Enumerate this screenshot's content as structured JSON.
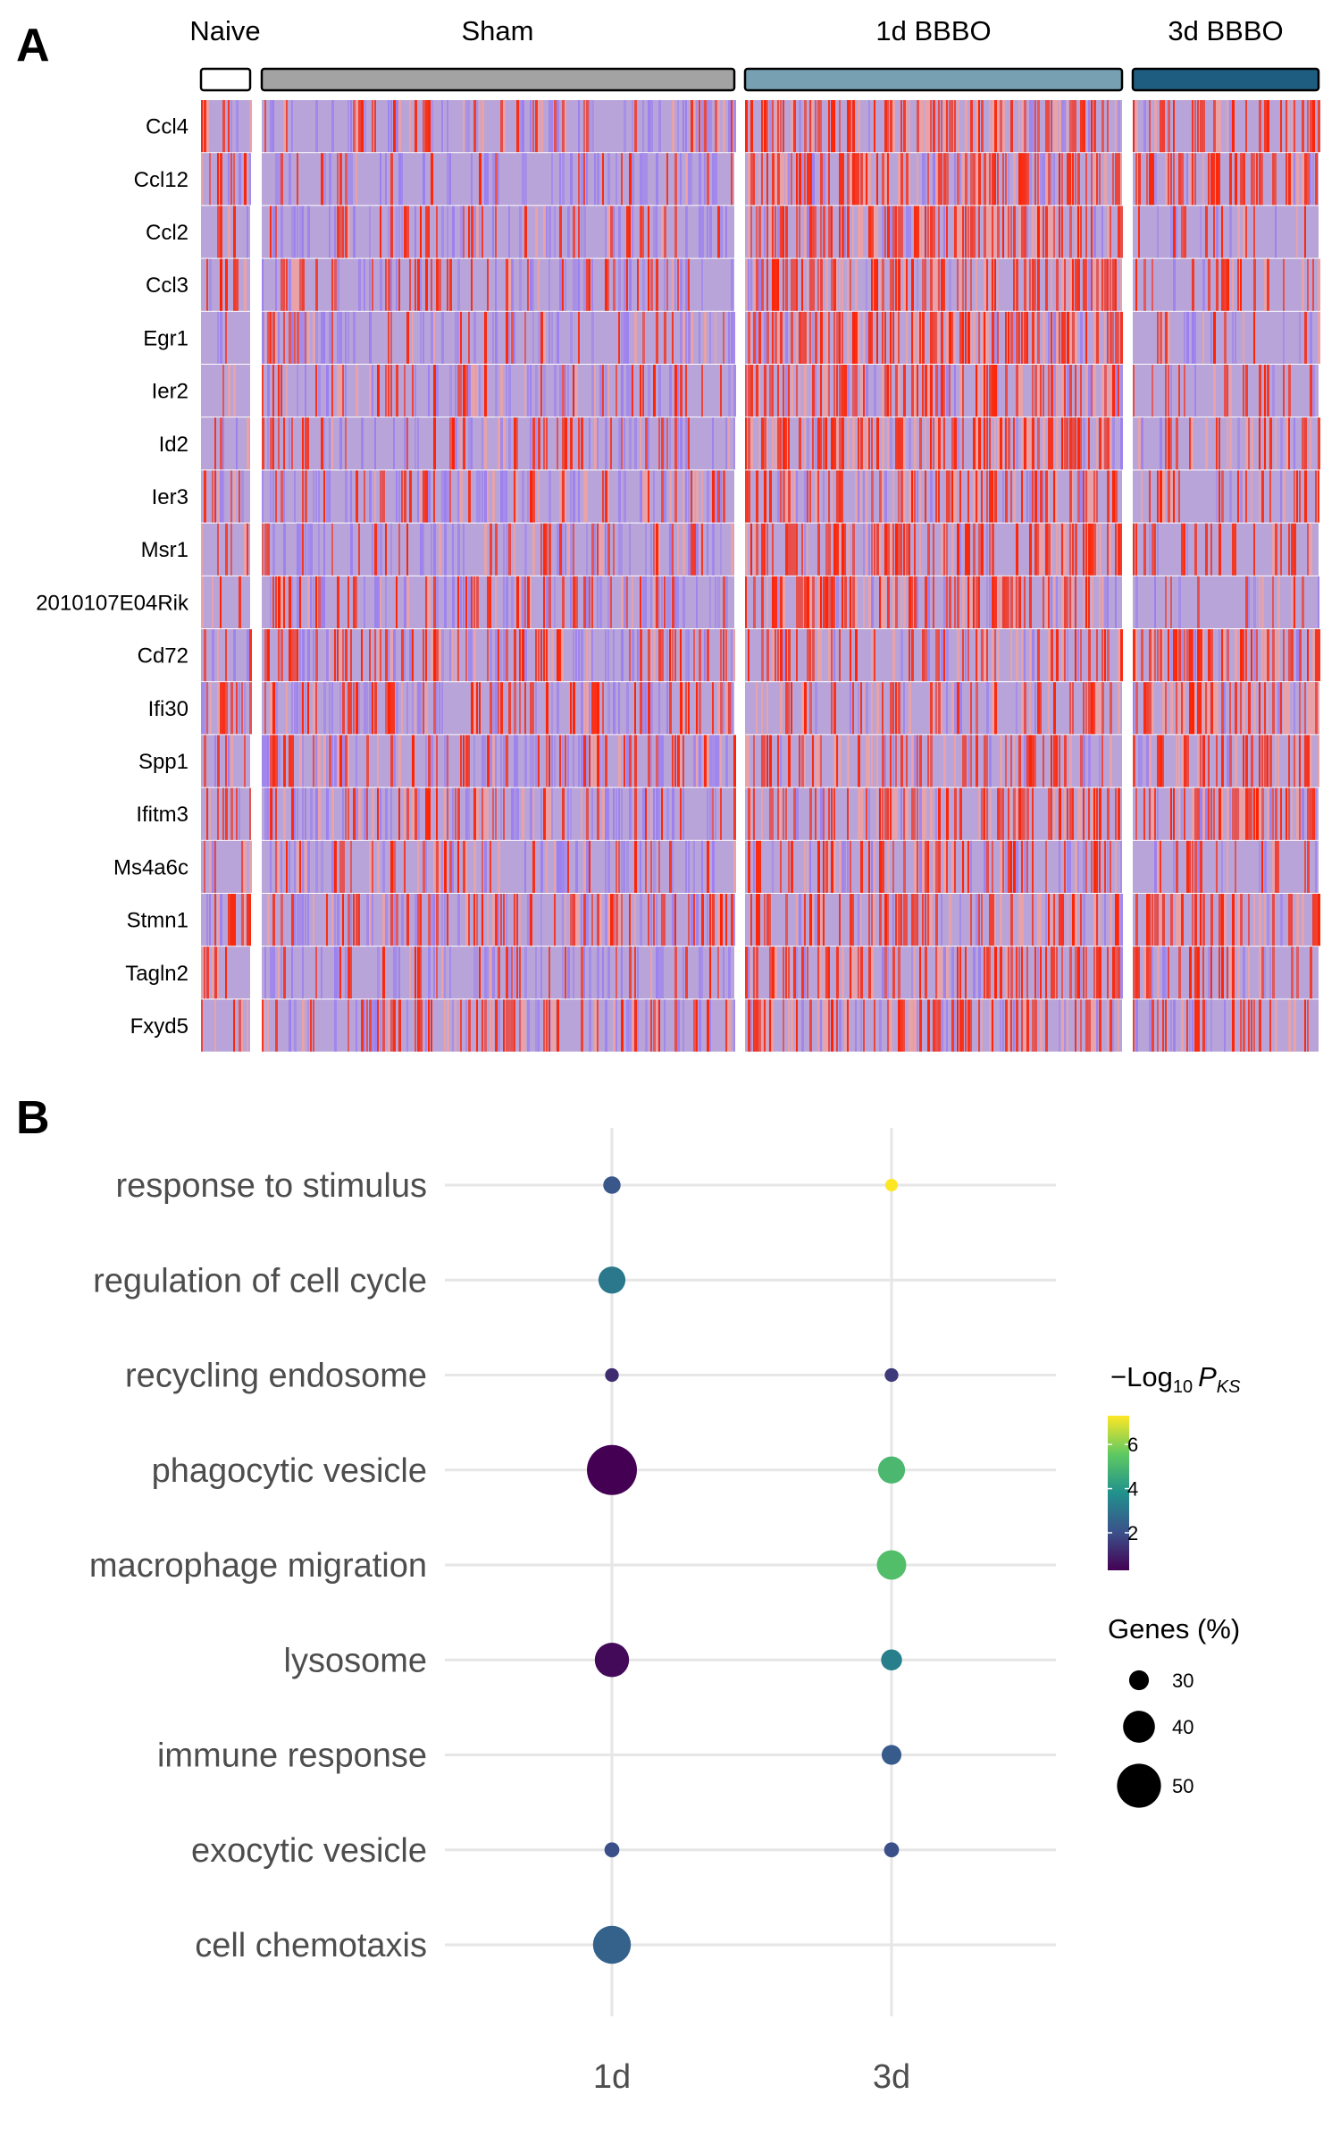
{
  "panels": [
    {
      "letter": "A"
    },
    {
      "letter": "B"
    }
  ],
  "chart_data": [
    {
      "type": "heatmap",
      "groups": [
        {
          "name": "Naive",
          "color": "#ffffff"
        },
        {
          "name": "Sham",
          "color": "#a3a3a3"
        },
        {
          "name": "1d BBBO",
          "color": "#77a1b3"
        },
        {
          "name": "3d BBBO",
          "color": "#1f5d80"
        }
      ],
      "genes": [
        "Ccl4",
        "Ccl12",
        "Ccl2",
        "Ccl3",
        "Egr1",
        "Ier2",
        "Id2",
        "Ier3",
        "Msr1",
        "2010107E04Rik",
        "Cd72",
        "Ifi30",
        "Spp1",
        "Ifitm3",
        "Ms4a6c",
        "Stmn1",
        "Tagln2",
        "Fxyd5"
      ],
      "color_scale": {
        "low": "#9b80f0",
        "mid": "#b8a4d8",
        "high": "#ff2200"
      }
    },
    {
      "type": "scatter",
      "x_categories": [
        "1d",
        "3d"
      ],
      "terms": [
        "response to stimulus",
        "regulation of cell cycle",
        "recycling endosome",
        "phagocytic vesicle",
        "macrophage migration",
        "lysosome",
        "immune response",
        "exocytic vesicle",
        "cell chemotaxis"
      ],
      "points": [
        {
          "term": "response to stimulus",
          "x": "1d",
          "neglog10_p": 2.2,
          "genes_pct": 28
        },
        {
          "term": "response to stimulus",
          "x": "3d",
          "neglog10_p": 7.3,
          "genes_pct": 24
        },
        {
          "term": "regulation of cell cycle",
          "x": "1d",
          "neglog10_p": 3.1,
          "genes_pct": 36
        },
        {
          "term": "recycling endosome",
          "x": "1d",
          "neglog10_p": 1.2,
          "genes_pct": 25
        },
        {
          "term": "recycling endosome",
          "x": "3d",
          "neglog10_p": 1.5,
          "genes_pct": 25
        },
        {
          "term": "phagocytic vesicle",
          "x": "1d",
          "neglog10_p": 0.3,
          "genes_pct": 55
        },
        {
          "term": "phagocytic vesicle",
          "x": "3d",
          "neglog10_p": 5.0,
          "genes_pct": 36
        },
        {
          "term": "macrophage migration",
          "x": "3d",
          "neglog10_p": 5.2,
          "genes_pct": 38
        },
        {
          "term": "lysosome",
          "x": "1d",
          "neglog10_p": 0.5,
          "genes_pct": 42
        },
        {
          "term": "lysosome",
          "x": "3d",
          "neglog10_p": 3.3,
          "genes_pct": 31
        },
        {
          "term": "immune response",
          "x": "3d",
          "neglog10_p": 2.3,
          "genes_pct": 30
        },
        {
          "term": "exocytic vesicle",
          "x": "1d",
          "neglog10_p": 2.0,
          "genes_pct": 26
        },
        {
          "term": "exocytic vesicle",
          "x": "3d",
          "neglog10_p": 2.0,
          "genes_pct": 26
        },
        {
          "term": "cell chemotaxis",
          "x": "1d",
          "neglog10_p": 2.5,
          "genes_pct": 45
        }
      ],
      "color_legend": {
        "title_prefix": "−Log",
        "title_sub": "10",
        "title_p": "P",
        "title_p_sub": "KS",
        "ticks": [
          2,
          4,
          6
        ],
        "range": [
          0.3,
          7.3
        ],
        "palette": [
          "#440154",
          "#3b528b",
          "#21918c",
          "#5ec962",
          "#fde725"
        ]
      },
      "size_legend": {
        "title": "Genes (%)",
        "ticks": [
          30,
          40,
          50
        ],
        "range": [
          24,
          55
        ]
      },
      "grid": true
    }
  ]
}
